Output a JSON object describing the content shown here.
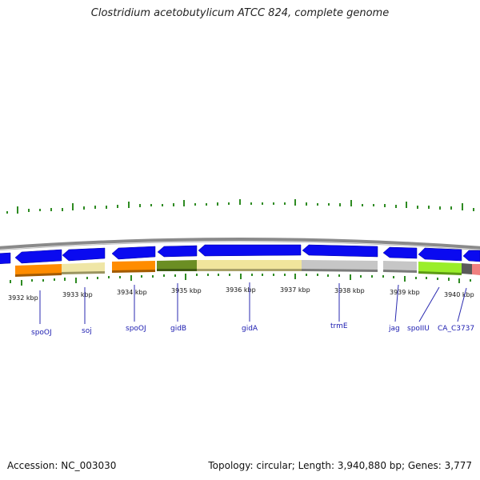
{
  "title": "Clostridium acetobutylicum ATCC 824, complete genome",
  "accession": "Accession: NC_003030",
  "summary": "Topology: circular; Length: 3,940,880 bp; Genes: 3,777",
  "colors": {
    "backbone": "#8a8a8a",
    "arrow": "#0a0af0",
    "tick": "#2e8b22",
    "label": "#1b1bb0",
    "leader": "#2a2ab0"
  },
  "kbp_labels": [
    "3932 kbp",
    "3933 kbp",
    "3934 kbp",
    "3935 kbp",
    "3936 kbp",
    "3937 kbp",
    "3938 kbp",
    "3939 kbp",
    "3940 kbp"
  ],
  "genes": [
    "spoOJ",
    "soj",
    "spoOJ",
    "gidB",
    "gidA",
    "trmE",
    "jag",
    "spoIIU",
    "CA_C3737"
  ]
}
